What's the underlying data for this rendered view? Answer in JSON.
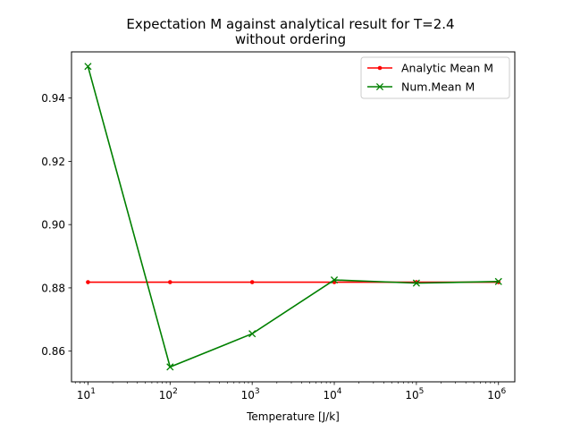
{
  "chart_data": {
    "type": "line",
    "title_line1": "Expectation M against analytical result for T=2.4",
    "title_line2": "without ordering",
    "xlabel": "Temperature [J/k]",
    "ylabel": "",
    "x_scale": "log",
    "x": [
      10,
      100,
      1000,
      10000,
      100000,
      1000000
    ],
    "xlim": [
      6.3,
      1580000
    ],
    "ylim": [
      0.8503,
      0.9546
    ],
    "x_ticks": [
      {
        "value": 10,
        "base": "10",
        "exp": "1"
      },
      {
        "value": 100,
        "base": "10",
        "exp": "2"
      },
      {
        "value": 1000,
        "base": "10",
        "exp": "3"
      },
      {
        "value": 10000,
        "base": "10",
        "exp": "4"
      },
      {
        "value": 100000,
        "base": "10",
        "exp": "5"
      },
      {
        "value": 1000000,
        "base": "10",
        "exp": "6"
      }
    ],
    "y_ticks": [
      {
        "value": 0.86,
        "label": "0.86"
      },
      {
        "value": 0.88,
        "label": "0.88"
      },
      {
        "value": 0.9,
        "label": "0.90"
      },
      {
        "value": 0.92,
        "label": "0.92"
      },
      {
        "value": 0.94,
        "label": "0.94"
      }
    ],
    "grid": false,
    "legend_position": "top-right",
    "series": [
      {
        "name": "Analytic Mean M",
        "color": "#ff0000",
        "marker": "dot",
        "values": [
          0.8818,
          0.8818,
          0.8818,
          0.8818,
          0.8818,
          0.8818
        ]
      },
      {
        "name": "Num.Mean M",
        "color": "#008000",
        "marker": "x",
        "values": [
          0.95,
          0.855,
          0.8655,
          0.8825,
          0.8815,
          0.882
        ]
      }
    ]
  }
}
